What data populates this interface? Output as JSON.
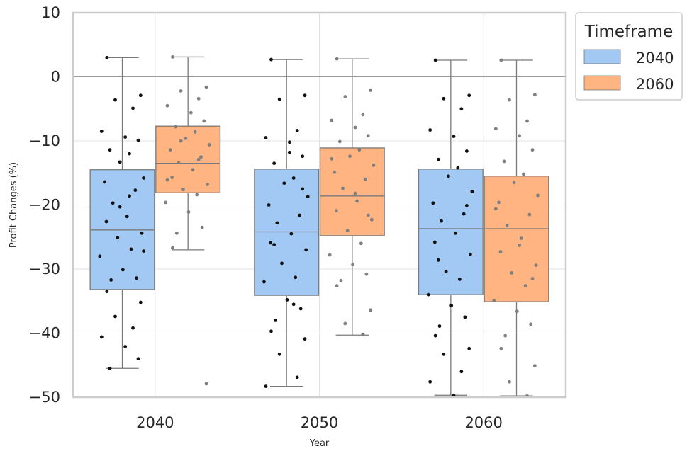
{
  "chart_data": {
    "type": "box",
    "xlabel": "Year",
    "ylabel": "Profit Changes (%)",
    "ylim": [
      -50,
      10
    ],
    "yticks": [
      10,
      0,
      -10,
      -20,
      -30,
      -40,
      -50
    ],
    "ytick_labels": [
      "10",
      "0",
      "−10",
      "−20",
      "−30",
      "−40",
      "−50"
    ],
    "grid": true,
    "reference_line": 0,
    "categories": [
      "2040",
      "2050",
      "2060"
    ],
    "legend": {
      "title": "Timeframe",
      "placement": "outside-top-right"
    },
    "series": [
      {
        "name": "2040",
        "color": "#a1c9f4",
        "point_color": "#111111",
        "boxes": [
          {
            "min": -45.5,
            "q1": -33.2,
            "median": -23.9,
            "q3": -14.5,
            "max": 3.0
          },
          {
            "min": -48.3,
            "q1": -34.1,
            "median": -24.2,
            "q3": -14.4,
            "max": 2.7
          },
          {
            "min": -49.7,
            "q1": -34.0,
            "median": -23.7,
            "q3": -14.4,
            "max": 2.6
          }
        ],
        "points": [
          [
            3.0,
            -2.9,
            -3.6,
            -4.9,
            -8.5,
            -9.4,
            -9.9,
            -11.4,
            -12.0,
            -13.3,
            -15.8,
            -16.4,
            -17.7,
            -19.7,
            -21.8,
            -22.6,
            -24.4,
            -25.1,
            -26.9,
            -28.0,
            -30.1,
            -31.4,
            -31.7,
            -33.5,
            -35.2,
            -37.4,
            -39.2,
            -40.6,
            -42.1,
            -44.0,
            -45.5,
            -18.6,
            -20.3,
            -27.2
          ],
          [
            2.7,
            -2.9,
            -3.5,
            -8.4,
            -9.5,
            -11.8,
            -12.4,
            -13.5,
            -15.8,
            -16.6,
            -18.7,
            -20.0,
            -21.6,
            -22.8,
            -24.5,
            -25.9,
            -27.0,
            -29.1,
            -31.3,
            -32.0,
            -34.8,
            -36.2,
            -38.0,
            -39.7,
            -40.9,
            -43.3,
            -46.9,
            -48.3,
            -10.2,
            -17.5,
            -26.2,
            -35.5
          ],
          [
            2.6,
            -2.9,
            -3.4,
            -5.0,
            -8.3,
            -9.3,
            -11.6,
            -12.9,
            -14.2,
            -15.5,
            -17.9,
            -19.7,
            -21.4,
            -22.5,
            -24.4,
            -25.8,
            -27.7,
            -30.4,
            -31.6,
            -34.0,
            -35.7,
            -37.5,
            -38.9,
            -40.4,
            -42.4,
            -43.3,
            -46.0,
            -47.6,
            -49.7,
            -20.1,
            -28.6
          ]
        ]
      },
      {
        "name": "2060",
        "color": "#ffb482",
        "point_color": "#7f7f7f",
        "boxes": [
          {
            "min": -27.0,
            "q1": -18.1,
            "median": -13.5,
            "q3": -7.7,
            "max": 3.1
          },
          {
            "min": -40.3,
            "q1": -24.8,
            "median": -18.6,
            "q3": -11.1,
            "max": 2.8
          },
          {
            "min": -49.8,
            "q1": -35.1,
            "median": -23.7,
            "q3": -15.5,
            "max": 2.6
          }
        ],
        "points": [
          [
            3.1,
            -1.6,
            -2.2,
            -3.4,
            -4.5,
            -5.6,
            -6.9,
            -7.8,
            -8.6,
            -9.6,
            -10.6,
            -11.4,
            -12.5,
            -13.4,
            -14.5,
            -15.7,
            -16.8,
            -17.6,
            -18.4,
            -19.6,
            -21.1,
            -23.5,
            -24.4,
            -26.7,
            -47.9,
            -10.0,
            -12.9,
            -16.1
          ],
          [
            2.8,
            -2.1,
            -3.1,
            -5.9,
            -6.8,
            -7.9,
            -9.2,
            -10.1,
            -11.4,
            -12.4,
            -13.8,
            -14.9,
            -16.0,
            -17.4,
            -19.4,
            -20.9,
            -22.3,
            -24.0,
            -26.0,
            -27.8,
            -29.3,
            -30.8,
            -31.8,
            -32.6,
            -36.4,
            -38.5,
            -40.2,
            -12.8,
            -18.2,
            -21.6
          ],
          [
            2.6,
            -2.8,
            -3.6,
            -6.9,
            -8.1,
            -9.2,
            -11.4,
            -13.2,
            -15.2,
            -16.5,
            -18.5,
            -19.6,
            -21.5,
            -23.2,
            -25.2,
            -27.3,
            -29.4,
            -30.6,
            -32.6,
            -34.9,
            -36.6,
            -38.6,
            -40.4,
            -42.4,
            -45.1,
            -47.6,
            -49.8,
            -20.6,
            -26.3,
            -31.5
          ]
        ]
      }
    ]
  }
}
